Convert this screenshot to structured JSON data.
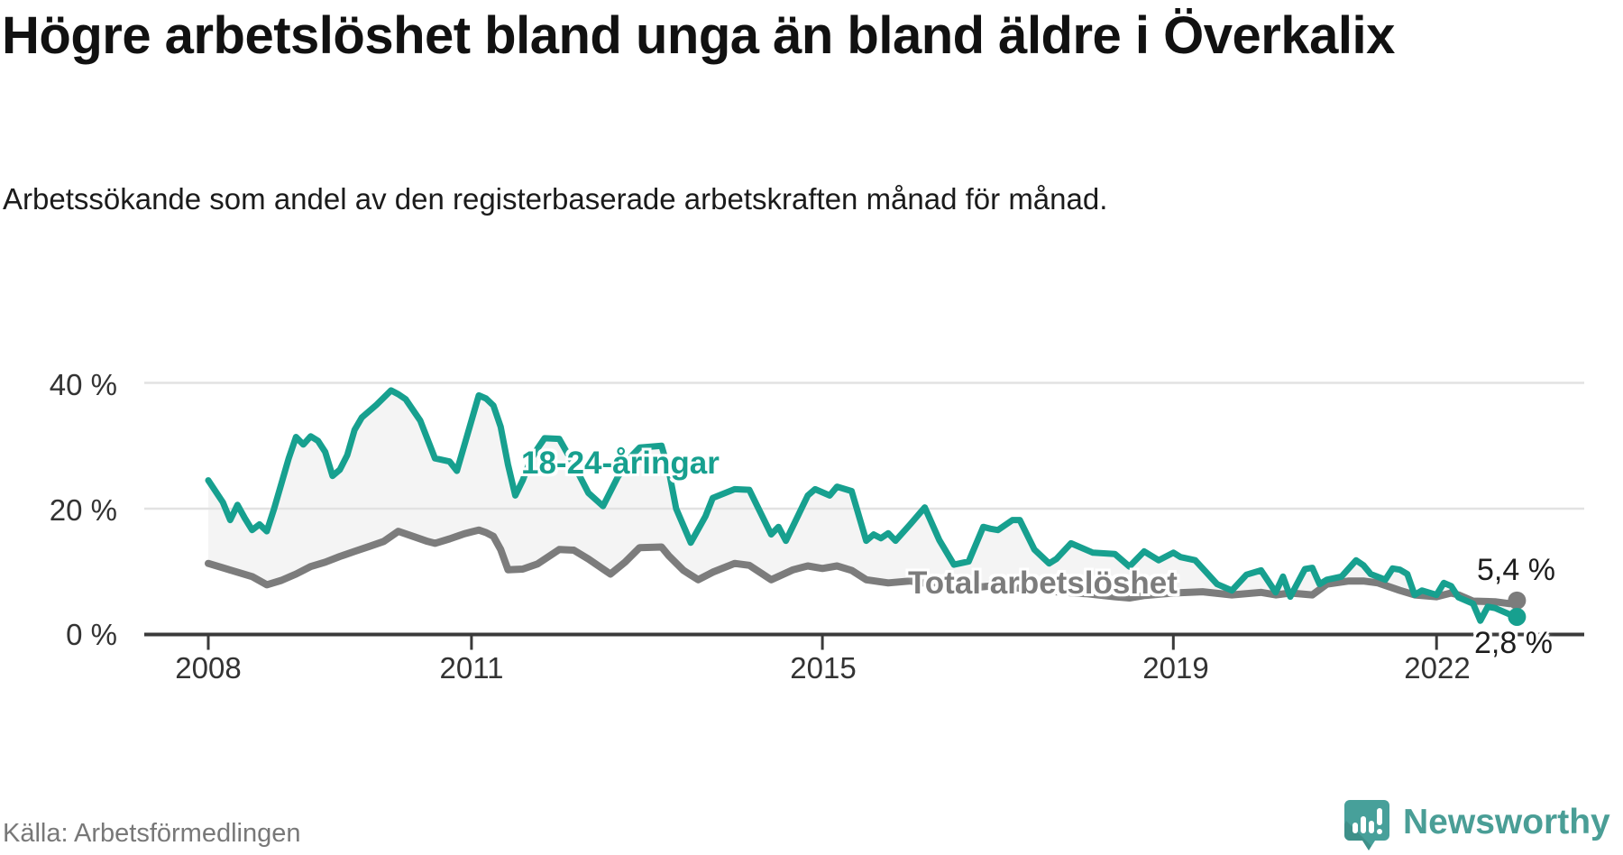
{
  "header": {
    "title": "Högre arbetslöshet bland unga än bland äldre i Överkalix",
    "subtitle": "Arbetssökande som andel av den registerbaserade arbetskraften månad för månad."
  },
  "footer": {
    "source": "Källa: Arbetsförmedlingen",
    "brand": "Newsworthy",
    "brand_icon": "newsworthy-speech-bubble-bar-chart-icon"
  },
  "colors": {
    "young_line": "#17a08f",
    "total_line": "#7c7c7c",
    "area_fill": "#f4f4f4",
    "gridline": "#e2e2e2",
    "axis": "#3a3a3a",
    "title_text": "#111111",
    "tick_text": "#333333",
    "end_label_text": "#1d1d1d",
    "source_text": "#787878",
    "brand_teal": "#4a9e96"
  },
  "chart_data": {
    "type": "line",
    "grid": "horizontal",
    "x_axis": {
      "unit": "months since 2008-01",
      "tick_years": [
        2008,
        2011,
        2015,
        2019,
        2022
      ],
      "tick_labels": [
        "2008",
        "2011",
        "2015",
        "2019",
        "2022"
      ]
    },
    "y_axis": {
      "unit": "%",
      "ticks": [
        40,
        20,
        0
      ],
      "tick_labels": [
        "40 %",
        "20 %",
        "0 %"
      ],
      "ylim": [
        0,
        42
      ]
    },
    "area_fill_between_series": true,
    "series": [
      {
        "name": "18-24-åringar",
        "label": "18-24-åringar",
        "color": "#17a08f",
        "end_label": "2,8 %",
        "end_value": 2.8,
        "points": [
          [
            0,
            24.5
          ],
          [
            2,
            21
          ],
          [
            3,
            18.2
          ],
          [
            4,
            20.6
          ],
          [
            5,
            18.5
          ],
          [
            6,
            16.6
          ],
          [
            7,
            17.5
          ],
          [
            8,
            16.4
          ],
          [
            9,
            20
          ],
          [
            10,
            24
          ],
          [
            11,
            28
          ],
          [
            12,
            31.4
          ],
          [
            13,
            30.2
          ],
          [
            14,
            31.5
          ],
          [
            15,
            30.8
          ],
          [
            16,
            29
          ],
          [
            17,
            25.2
          ],
          [
            18,
            26.2
          ],
          [
            19,
            28.5
          ],
          [
            20,
            32.5
          ],
          [
            21,
            34.5
          ],
          [
            23,
            36.5
          ],
          [
            25,
            38.8
          ],
          [
            26,
            38.2
          ],
          [
            27,
            37.4
          ],
          [
            29,
            34
          ],
          [
            31,
            28
          ],
          [
            33,
            27.5
          ],
          [
            34,
            26
          ],
          [
            35,
            30
          ],
          [
            36,
            34
          ],
          [
            37,
            38
          ],
          [
            38,
            37.5
          ],
          [
            39,
            36.4
          ],
          [
            40,
            33
          ],
          [
            41,
            27
          ],
          [
            42,
            22.1
          ],
          [
            43,
            24.5
          ],
          [
            44,
            27.5
          ],
          [
            45,
            29.5
          ],
          [
            46,
            31.2
          ],
          [
            48,
            31.1
          ],
          [
            50,
            27
          ],
          [
            52,
            22.5
          ],
          [
            54,
            20.4
          ],
          [
            56,
            25
          ],
          [
            58,
            28.5
          ],
          [
            59,
            29.7
          ],
          [
            62,
            30
          ],
          [
            63,
            26
          ],
          [
            64,
            20
          ],
          [
            66,
            14.6
          ],
          [
            68,
            18.8
          ],
          [
            69,
            21.7
          ],
          [
            72,
            23.1
          ],
          [
            74,
            23
          ],
          [
            77,
            15.9
          ],
          [
            78,
            17.1
          ],
          [
            79,
            14.9
          ],
          [
            82,
            22.1
          ],
          [
            83,
            23.1
          ],
          [
            85,
            22.1
          ],
          [
            86,
            23.5
          ],
          [
            88,
            22.8
          ],
          [
            90,
            14.9
          ],
          [
            91,
            15.9
          ],
          [
            92,
            15.3
          ],
          [
            93,
            16.1
          ],
          [
            94,
            14.9
          ],
          [
            96,
            17.5
          ],
          [
            98,
            20.2
          ],
          [
            100,
            15
          ],
          [
            102,
            11.1
          ],
          [
            104,
            11.6
          ],
          [
            106,
            17.1
          ],
          [
            107,
            16.8
          ],
          [
            108,
            16.6
          ],
          [
            110,
            18.2
          ],
          [
            111,
            18.2
          ],
          [
            113,
            13.5
          ],
          [
            115,
            11.3
          ],
          [
            116,
            12
          ],
          [
            118,
            14.5
          ],
          [
            121,
            13
          ],
          [
            124,
            12.8
          ],
          [
            126,
            10.8
          ],
          [
            128,
            13.2
          ],
          [
            130,
            11.8
          ],
          [
            132,
            13
          ],
          [
            133,
            12.3
          ],
          [
            135,
            11.8
          ],
          [
            138,
            8
          ],
          [
            140,
            7
          ],
          [
            142,
            9.5
          ],
          [
            144,
            10.2
          ],
          [
            146,
            6.7
          ],
          [
            147,
            9.2
          ],
          [
            148,
            6
          ],
          [
            150,
            10.4
          ],
          [
            151,
            10.6
          ],
          [
            152,
            8
          ],
          [
            153,
            8.7
          ],
          [
            155,
            9.2
          ],
          [
            157,
            11.8
          ],
          [
            158,
            11
          ],
          [
            159,
            9.6
          ],
          [
            161,
            8.7
          ],
          [
            162,
            10.5
          ],
          [
            163,
            10.3
          ],
          [
            164,
            9.6
          ],
          [
            165,
            6.3
          ],
          [
            166,
            7
          ],
          [
            168,
            6.3
          ],
          [
            169,
            8.2
          ],
          [
            170,
            7.7
          ],
          [
            171,
            5.9
          ],
          [
            173,
            4.9
          ],
          [
            174,
            2.2
          ],
          [
            175,
            4.4
          ],
          [
            176,
            4.2
          ],
          [
            178,
            3.2
          ],
          [
            179,
            2.8
          ]
        ]
      },
      {
        "name": "Total arbetslöshet",
        "label": "Total arbetslöshet",
        "color": "#7c7c7c",
        "end_label": "5,4 %",
        "end_value": 5.4,
        "points": [
          [
            0,
            11.3
          ],
          [
            2,
            10.6
          ],
          [
            4,
            9.9
          ],
          [
            6,
            9.2
          ],
          [
            8,
            7.9
          ],
          [
            10,
            8.6
          ],
          [
            12,
            9.6
          ],
          [
            14,
            10.8
          ],
          [
            16,
            11.5
          ],
          [
            18,
            12.4
          ],
          [
            20,
            13.2
          ],
          [
            22,
            14
          ],
          [
            24,
            14.8
          ],
          [
            26,
            16.4
          ],
          [
            28,
            15.6
          ],
          [
            30,
            14.8
          ],
          [
            31,
            14.5
          ],
          [
            33,
            15.2
          ],
          [
            35,
            16
          ],
          [
            36,
            16.3
          ],
          [
            37,
            16.6
          ],
          [
            38,
            16.2
          ],
          [
            39,
            15.6
          ],
          [
            40,
            13.5
          ],
          [
            41,
            10.3
          ],
          [
            43,
            10.4
          ],
          [
            45,
            11.2
          ],
          [
            48,
            13.5
          ],
          [
            50,
            13.4
          ],
          [
            52,
            12
          ],
          [
            55,
            9.6
          ],
          [
            57,
            11.5
          ],
          [
            59,
            13.8
          ],
          [
            62,
            13.9
          ],
          [
            63,
            12.5
          ],
          [
            65,
            10.2
          ],
          [
            67,
            8.7
          ],
          [
            69,
            9.9
          ],
          [
            72,
            11.3
          ],
          [
            74,
            11
          ],
          [
            77,
            8.7
          ],
          [
            80,
            10.3
          ],
          [
            82,
            10.9
          ],
          [
            84,
            10.5
          ],
          [
            86,
            10.9
          ],
          [
            88,
            10.2
          ],
          [
            90,
            8.7
          ],
          [
            93,
            8.2
          ],
          [
            96,
            8.5
          ],
          [
            100,
            7.8
          ],
          [
            104,
            7.4
          ],
          [
            108,
            7.8
          ],
          [
            112,
            7.2
          ],
          [
            116,
            6.8
          ],
          [
            120,
            6.5
          ],
          [
            124,
            6
          ],
          [
            126,
            5.8
          ],
          [
            128,
            6.2
          ],
          [
            132,
            6.6
          ],
          [
            136,
            6.8
          ],
          [
            140,
            6.3
          ],
          [
            144,
            6.7
          ],
          [
            146,
            6.3
          ],
          [
            148,
            6.6
          ],
          [
            151,
            6.3
          ],
          [
            153,
            8
          ],
          [
            156,
            8.5
          ],
          [
            158,
            8.5
          ],
          [
            160,
            8.2
          ],
          [
            163,
            7
          ],
          [
            165,
            6.3
          ],
          [
            168,
            6
          ],
          [
            170,
            6.6
          ],
          [
            171,
            6.3
          ],
          [
            173,
            5.3
          ],
          [
            176,
            5.2
          ],
          [
            178,
            4.9
          ],
          [
            179,
            5.4
          ]
        ]
      }
    ]
  }
}
